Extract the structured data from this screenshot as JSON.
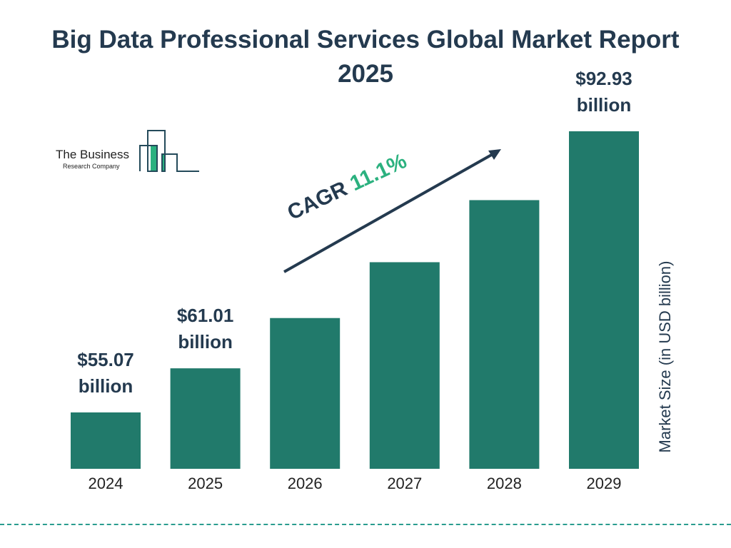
{
  "title": "Big Data Professional Services Global Market Report 2025",
  "logo_text": {
    "line1": "The Business",
    "line2": "Research Company"
  },
  "chart_data": {
    "type": "bar",
    "title": "Big Data Professional Services Global Market Report 2025",
    "categories": [
      "2024",
      "2025",
      "2026",
      "2027",
      "2028",
      "2029"
    ],
    "values": [
      55.07,
      61.01,
      67.78,
      75.3,
      83.66,
      92.93
    ],
    "data_labels": [
      "$55.07 billion",
      "$61.01 billion",
      "",
      "",
      "",
      "$92.93 billion"
    ],
    "ylabel": "Market Size (in USD billion)",
    "xlabel": "",
    "grid": false,
    "bar_color": "#217a6b",
    "annotation": {
      "label": "CAGR",
      "value": "11.1%",
      "value_color": "#2bb17f"
    }
  }
}
